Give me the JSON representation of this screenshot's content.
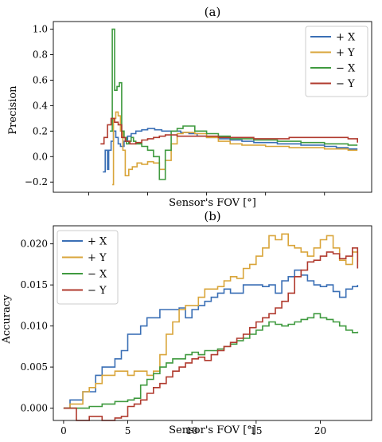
{
  "chart_data": [
    {
      "type": "line",
      "title": "(a)",
      "xlabel": "Sensor's FOV [°]",
      "ylabel": "Precision",
      "xlim": [
        -3,
        24
      ],
      "ylim": [
        -0.28,
        1.06
      ],
      "xticks": [],
      "yticks": [
        1.0,
        0.8,
        0.6,
        0.4,
        0.2,
        0.0,
        -0.2
      ],
      "ytick_labels": [
        "1.0",
        "0.8",
        "0.6",
        "0.4",
        "0.2",
        "0.0",
        "−0.2"
      ],
      "legend_position": "top-right",
      "series": [
        {
          "name": "+ X",
          "color": "#3a6fb5",
          "x": [
            1.2,
            1.4,
            1.6,
            1.7,
            1.9,
            2.1,
            2.3,
            2.5,
            2.7,
            3.0,
            3.3,
            3.6,
            4.0,
            4.5,
            5.0,
            5.6,
            6.2,
            7.0,
            7.8,
            8.5,
            9.2,
            10.0,
            11.0,
            12.0,
            13.0,
            14.0,
            15.0,
            16.0,
            17.0,
            18.0,
            19.0,
            20.0,
            21.0,
            22.0,
            22.8
          ],
          "y": [
            -0.12,
            0.05,
            -0.1,
            0.05,
            0.12,
            0.2,
            0.15,
            0.1,
            0.08,
            0.12,
            0.16,
            0.18,
            0.2,
            0.21,
            0.22,
            0.21,
            0.2,
            0.2,
            0.19,
            0.18,
            0.16,
            0.15,
            0.14,
            0.13,
            0.12,
            0.11,
            0.11,
            0.1,
            0.1,
            0.09,
            0.09,
            0.08,
            0.07,
            0.06,
            0.06
          ]
        },
        {
          "name": "+ Y",
          "color": "#d9a53a",
          "x": [
            2.0,
            2.1,
            2.3,
            2.5,
            2.7,
            2.9,
            3.1,
            3.4,
            3.7,
            4.1,
            4.5,
            5.0,
            5.5,
            6.0,
            6.5,
            7.0,
            7.5,
            8.0,
            9.0,
            10.0,
            11.0,
            12.0,
            13.0,
            14.0,
            15.0,
            16.0,
            17.0,
            18.0,
            19.0,
            20.0,
            21.0,
            22.0,
            22.8
          ],
          "y": [
            -0.22,
            0.3,
            0.35,
            0.32,
            0.2,
            0.05,
            -0.15,
            -0.1,
            -0.08,
            -0.05,
            -0.06,
            -0.04,
            -0.05,
            -0.1,
            -0.03,
            0.1,
            0.18,
            0.19,
            0.18,
            0.15,
            0.12,
            0.1,
            0.09,
            0.09,
            0.08,
            0.08,
            0.07,
            0.07,
            0.07,
            0.06,
            0.06,
            0.05,
            0.05
          ]
        },
        {
          "name": "− X",
          "color": "#3f9a3f",
          "x": [
            1.8,
            2.0,
            2.2,
            2.4,
            2.6,
            2.8,
            3.0,
            3.2,
            3.4,
            3.6,
            3.8,
            4.0,
            4.5,
            5.0,
            5.5,
            6.0,
            6.5,
            7.0,
            7.5,
            8.0,
            9.0,
            10.0,
            11.0,
            12.0,
            13.0,
            14.0,
            15.0,
            16.0,
            17.0,
            18.0,
            19.0,
            20.0,
            21.0,
            22.0,
            22.8
          ],
          "y": [
            0.2,
            1.0,
            0.52,
            0.55,
            0.58,
            0.2,
            0.15,
            0.1,
            0.12,
            0.15,
            0.12,
            0.1,
            0.08,
            0.05,
            0.0,
            -0.18,
            0.05,
            0.2,
            0.22,
            0.24,
            0.2,
            0.18,
            0.16,
            0.14,
            0.14,
            0.13,
            0.13,
            0.12,
            0.12,
            0.11,
            0.11,
            0.1,
            0.1,
            0.09,
            0.09
          ]
        },
        {
          "name": "− Y",
          "color": "#b03a2e",
          "x": [
            1.0,
            1.3,
            1.6,
            1.9,
            2.2,
            2.5,
            2.8,
            3.1,
            3.5,
            4.0,
            4.5,
            5.0,
            5.5,
            6.0,
            6.5,
            7.0,
            7.5,
            8.0,
            9.0,
            10.0,
            11.0,
            12.0,
            13.0,
            14.0,
            15.0,
            16.0,
            17.0,
            18.0,
            19.0,
            20.0,
            21.0,
            22.0,
            22.8
          ],
          "y": [
            0.1,
            0.15,
            0.25,
            0.3,
            0.27,
            0.25,
            0.15,
            0.12,
            0.1,
            0.11,
            0.13,
            0.14,
            0.15,
            0.16,
            0.17,
            0.17,
            0.16,
            0.16,
            0.16,
            0.16,
            0.15,
            0.15,
            0.15,
            0.14,
            0.14,
            0.14,
            0.15,
            0.15,
            0.15,
            0.15,
            0.15,
            0.14,
            0.11
          ]
        }
      ]
    },
    {
      "type": "line",
      "title": "(b)",
      "xlabel": "Sensor's FOV [°]",
      "ylabel": "Accuracy",
      "xlim": [
        -0.8,
        24
      ],
      "ylim": [
        -0.0015,
        0.0222
      ],
      "xticks": [
        0,
        5,
        10,
        15,
        20
      ],
      "yticks": [
        0.0,
        0.005,
        0.01,
        0.015,
        0.02
      ],
      "ytick_labels": [
        "0.000",
        "0.005",
        "0.010",
        "0.015",
        "0.020"
      ],
      "legend_position": "top-left",
      "series": [
        {
          "name": "+ X",
          "color": "#3a6fb5",
          "x": [
            0,
            0.5,
            1,
            1.5,
            2,
            2.5,
            3,
            3.5,
            4,
            4.5,
            5,
            5.5,
            6,
            6.5,
            7,
            7.5,
            8,
            8.5,
            9,
            9.5,
            10,
            10.5,
            11,
            11.5,
            12,
            12.5,
            13,
            13.5,
            14,
            14.5,
            15,
            15.5,
            16,
            16.5,
            17,
            17.5,
            18,
            18.5,
            19,
            19.5,
            20,
            20.5,
            21,
            21.5,
            22,
            22.5,
            22.9
          ],
          "y": [
            0,
            0.001,
            0.001,
            0.002,
            0.002,
            0.004,
            0.005,
            0.005,
            0.006,
            0.007,
            0.009,
            0.009,
            0.01,
            0.011,
            0.011,
            0.012,
            0.012,
            0.012,
            0.0122,
            0.011,
            0.012,
            0.0125,
            0.013,
            0.0135,
            0.014,
            0.0145,
            0.014,
            0.014,
            0.015,
            0.015,
            0.015,
            0.0148,
            0.015,
            0.014,
            0.0155,
            0.016,
            0.0168,
            0.0162,
            0.0155,
            0.015,
            0.0148,
            0.015,
            0.0142,
            0.0135,
            0.0145,
            0.0148,
            0.015
          ]
        },
        {
          "name": "+ Y",
          "color": "#d9a53a",
          "x": [
            0,
            0.5,
            1,
            1.5,
            2,
            2.5,
            3,
            3.5,
            4,
            4.5,
            5,
            5.5,
            6,
            6.5,
            7,
            7.5,
            8,
            8.5,
            9,
            9.5,
            10,
            10.5,
            11,
            11.5,
            12,
            12.5,
            13,
            13.5,
            14,
            14.5,
            15,
            15.5,
            16,
            16.5,
            17,
            17.5,
            18,
            18.5,
            19,
            19.5,
            20,
            20.5,
            21,
            21.5,
            22,
            22.5,
            22.9
          ],
          "y": [
            0,
            0.0005,
            0.0005,
            0.002,
            0.0025,
            0.003,
            0.004,
            0.004,
            0.0045,
            0.0045,
            0.004,
            0.0045,
            0.0045,
            0.004,
            0.0045,
            0.0065,
            0.009,
            0.0105,
            0.012,
            0.0125,
            0.0125,
            0.0135,
            0.0145,
            0.0145,
            0.0148,
            0.0155,
            0.016,
            0.0158,
            0.017,
            0.0175,
            0.0185,
            0.0195,
            0.021,
            0.0205,
            0.0212,
            0.0198,
            0.0195,
            0.019,
            0.0185,
            0.0195,
            0.0205,
            0.021,
            0.0195,
            0.018,
            0.0175,
            0.019,
            0.0178
          ]
        },
        {
          "name": "− X",
          "color": "#3f9a3f",
          "x": [
            0,
            1,
            2,
            3,
            4,
            5,
            5.5,
            6,
            6.5,
            7,
            7.5,
            8,
            8.5,
            9,
            9.5,
            10,
            10.5,
            11,
            11.5,
            12,
            12.5,
            13,
            13.5,
            14,
            14.5,
            15,
            15.5,
            16,
            16.5,
            17,
            17.5,
            18,
            18.5,
            19,
            19.5,
            20,
            20.5,
            21,
            21.5,
            22,
            22.5,
            22.9
          ],
          "y": [
            0,
            0,
            0.0002,
            0.0005,
            0.0008,
            0.001,
            0.0012,
            0.0028,
            0.0035,
            0.0042,
            0.005,
            0.0055,
            0.006,
            0.006,
            0.0065,
            0.0068,
            0.0065,
            0.007,
            0.007,
            0.0072,
            0.0075,
            0.0078,
            0.0082,
            0.0085,
            0.009,
            0.0095,
            0.01,
            0.0105,
            0.0102,
            0.01,
            0.0102,
            0.0105,
            0.0108,
            0.011,
            0.0115,
            0.011,
            0.0108,
            0.0105,
            0.01,
            0.0095,
            0.0092,
            0.0093
          ]
        },
        {
          "name": "− Y",
          "color": "#b03a2e",
          "x": [
            0,
            0.8,
            1,
            2,
            3,
            4,
            4.5,
            5,
            5.5,
            6,
            6.5,
            7,
            7.5,
            8,
            8.5,
            9,
            9.5,
            10,
            10.5,
            11,
            11.5,
            12,
            12.5,
            13,
            13.5,
            14,
            14.5,
            15,
            15.5,
            16,
            16.5,
            17,
            17.5,
            18,
            18.5,
            19,
            19.5,
            20,
            20.5,
            21,
            21.5,
            22,
            22.5,
            22.9
          ],
          "y": [
            0,
            0,
            -0.0015,
            -0.001,
            -0.0015,
            -0.0012,
            -0.001,
            0.0002,
            0.0005,
            0.001,
            0.0018,
            0.0025,
            0.003,
            0.0038,
            0.0045,
            0.005,
            0.0055,
            0.006,
            0.0062,
            0.0058,
            0.0065,
            0.007,
            0.0075,
            0.008,
            0.0085,
            0.009,
            0.0098,
            0.0105,
            0.011,
            0.0115,
            0.0122,
            0.013,
            0.014,
            0.016,
            0.0168,
            0.0178,
            0.018,
            0.0185,
            0.019,
            0.0188,
            0.0182,
            0.0185,
            0.0195,
            0.017
          ]
        }
      ]
    }
  ]
}
